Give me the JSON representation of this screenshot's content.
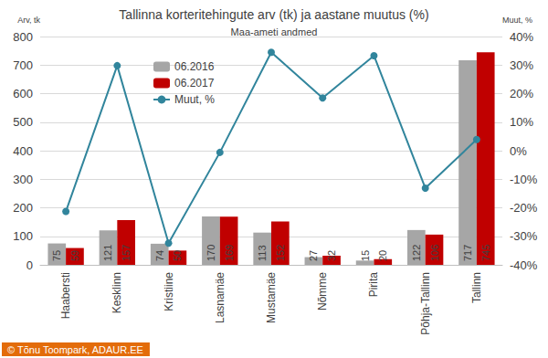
{
  "chart_data": {
    "type": "bar",
    "title": "Tallinna korteritehingute arv (tk) ja aastane muutus (%)",
    "subtitle": "Maa-ameti andmed",
    "y_label": "Arv, tk",
    "y2_label": "Muut, %",
    "source": "© Tõnu Toompark, ADAUR.EE",
    "categories": [
      "Haabersti",
      "Kesklinn",
      "Kristiine",
      "Lasnamäe",
      "Mustamäe",
      "Nõmme",
      "Pirita",
      "Põhja-Tallinn",
      "Tallinn"
    ],
    "series": [
      {
        "name": "06.2016",
        "type": "bar",
        "color": "#a6a6a6",
        "data_labels": true,
        "values": [
          75,
          121,
          74,
          170,
          113,
          27,
          15,
          122,
          717
        ]
      },
      {
        "name": "06.2017",
        "type": "bar",
        "color": "#c00000",
        "data_labels": true,
        "values": [
          59,
          157,
          50,
          169,
          152,
          32,
          20,
          106,
          745
        ]
      },
      {
        "name": "Muut, %",
        "type": "line",
        "axis": "y2",
        "color": "#31859c",
        "marker": "circle",
        "data_labels": false,
        "values": [
          -21.3,
          29.8,
          -32.4,
          -0.6,
          34.5,
          18.5,
          33.3,
          -13.1,
          3.9
        ]
      }
    ],
    "ylim": [
      0,
      800
    ],
    "yticks": [
      0,
      100,
      200,
      300,
      400,
      500,
      600,
      700,
      800
    ],
    "y2lim": [
      -40,
      40
    ],
    "y2ticks": [
      {
        "value": -40,
        "label": "-40%"
      },
      {
        "value": -30,
        "label": "-30%"
      },
      {
        "value": -20,
        "label": "-20%"
      },
      {
        "value": -10,
        "label": "-10%"
      },
      {
        "value": 0,
        "label": "0%"
      },
      {
        "value": 10,
        "label": "10%"
      },
      {
        "value": 20,
        "label": "20%"
      },
      {
        "value": 30,
        "label": "30%"
      },
      {
        "value": 40,
        "label": "40%"
      }
    ],
    "grid": true,
    "legend": "upper left"
  }
}
